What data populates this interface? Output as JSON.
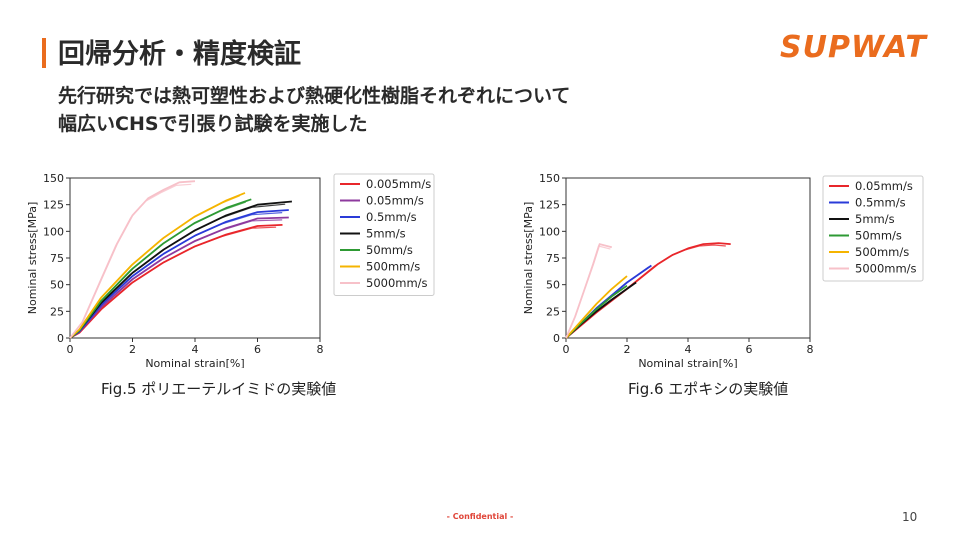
{
  "slide": {
    "title": "回帰分析・精度検証",
    "logo": "SUPWAT",
    "subtitle_line1": "先行研究では熱可塑性および熱硬化性樹脂それぞれについて",
    "subtitle_line2": "幅広いCHSで引張り試験を実施した",
    "caption_left": "Fig.5 ポリエーテルイミドの実験値",
    "caption_right": "Fig.6 エポキシの実験値",
    "confidential": "- Confidential -",
    "page_number": "10",
    "accent_color": "#ea6c1e"
  },
  "chart_data": [
    {
      "type": "line",
      "xlabel": "Nominal strain[%]",
      "ylabel": "Nominal stress[MPa]",
      "xlim": [
        0,
        8
      ],
      "ylim": [
        0,
        150
      ],
      "xticks": [
        "0",
        "2",
        "4",
        "6",
        "8"
      ],
      "yticks": [
        "0",
        "25",
        "50",
        "75",
        "100",
        "125",
        "150"
      ],
      "legend_position": "right",
      "series": [
        {
          "name": "0.005mm/s",
          "color": "#e8262b",
          "x": [
            0,
            0.3,
            1,
            2,
            3,
            4,
            5,
            6,
            6.8
          ],
          "y": [
            0,
            5,
            27,
            52,
            71,
            86,
            97,
            105,
            106
          ]
        },
        {
          "name": "0.05mm/s",
          "color": "#8e3a9e",
          "x": [
            0,
            0.3,
            1,
            2,
            3,
            4,
            5,
            6,
            7
          ],
          "y": [
            0,
            6,
            29,
            55,
            75,
            91,
            103,
            112,
            113
          ]
        },
        {
          "name": "0.5mm/s",
          "color": "#2a3bd8",
          "x": [
            0,
            0.3,
            1,
            2,
            3,
            4,
            5,
            6,
            7
          ],
          "y": [
            0,
            6,
            31,
            58,
            79,
            96,
            109,
            118,
            120
          ]
        },
        {
          "name": "5mm/s",
          "color": "#111111",
          "x": [
            0,
            0.3,
            1,
            2,
            3,
            4,
            5,
            6,
            7.1
          ],
          "y": [
            0,
            7,
            33,
            61,
            83,
            101,
            115,
            125,
            128
          ]
        },
        {
          "name": "50mm/s",
          "color": "#2e9a34",
          "x": [
            0,
            0.3,
            1,
            2,
            3,
            4,
            5,
            5.8
          ],
          "y": [
            0,
            7,
            35,
            65,
            89,
            108,
            122,
            130
          ]
        },
        {
          "name": "500mm/s",
          "color": "#f5b400",
          "x": [
            0,
            0.3,
            1,
            2,
            3,
            4,
            5,
            5.6
          ],
          "y": [
            0,
            8,
            38,
            69,
            94,
            114,
            129,
            136
          ]
        },
        {
          "name": "5000mm/s",
          "color": "#f7c1c9",
          "x": [
            0,
            0.4,
            1,
            1.5,
            2,
            2.5,
            3,
            3.5,
            4
          ],
          "y": [
            0,
            15,
            55,
            88,
            115,
            131,
            139,
            146,
            147
          ]
        }
      ]
    },
    {
      "type": "line",
      "xlabel": "Nominal strain[%]",
      "ylabel": "Nominal stress[MPa]",
      "xlim": [
        0,
        8
      ],
      "ylim": [
        0,
        150
      ],
      "xticks": [
        "0",
        "2",
        "4",
        "6",
        "8"
      ],
      "yticks": [
        "0",
        "25",
        "50",
        "75",
        "100",
        "125",
        "150"
      ],
      "legend_position": "right",
      "series": [
        {
          "name": "0.05mm/s",
          "color": "#e8262b",
          "x": [
            0,
            0.5,
            1,
            2,
            3,
            3.5,
            4,
            4.5,
            5,
            5.4
          ],
          "y": [
            0,
            12,
            24,
            46,
            69,
            78,
            84,
            88,
            89,
            88
          ]
        },
        {
          "name": "0.5mm/s",
          "color": "#2a3bd8",
          "x": [
            0,
            0.5,
            1,
            1.5,
            2,
            2.4,
            2.8
          ],
          "y": [
            0,
            14,
            28,
            40,
            52,
            60,
            68
          ]
        },
        {
          "name": "5mm/s",
          "color": "#111111",
          "x": [
            0,
            0.5,
            1,
            1.5,
            2,
            2.3
          ],
          "y": [
            0,
            13,
            25,
            36,
            46,
            52
          ]
        },
        {
          "name": "50mm/s",
          "color": "#2e9a34",
          "x": [
            0,
            0.5,
            1,
            1.5,
            2
          ],
          "y": [
            0,
            14,
            27,
            39,
            49
          ]
        },
        {
          "name": "500mm/s",
          "color": "#f5b400",
          "x": [
            0,
            0.5,
            1,
            1.5,
            2
          ],
          "y": [
            0,
            16,
            32,
            46,
            58
          ]
        },
        {
          "name": "5000mm/s",
          "color": "#f7c1c9",
          "x": [
            0,
            0.3,
            0.6,
            0.9,
            1.1,
            1.5
          ],
          "y": [
            0,
            20,
            45,
            70,
            88,
            85
          ]
        }
      ]
    }
  ]
}
